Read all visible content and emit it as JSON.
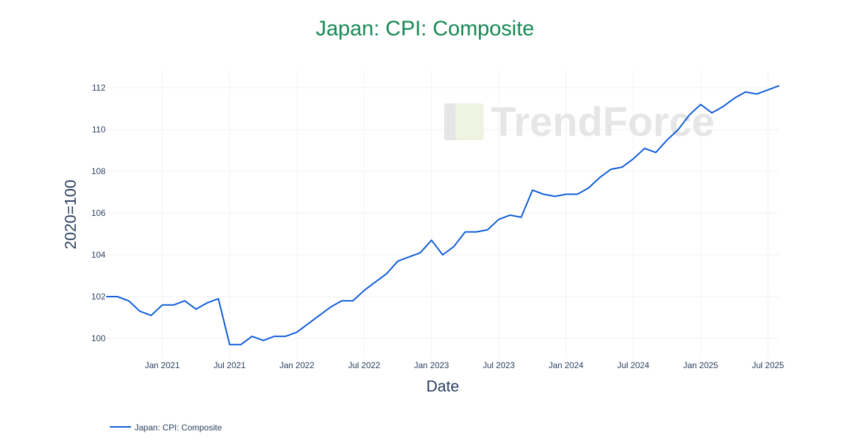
{
  "chart_data": {
    "type": "line",
    "title": "Japan: CPI: Composite",
    "xlabel": "Date",
    "ylabel": "2020=100",
    "watermark": "TrendForce",
    "grid": true,
    "legend_position": "bottom-left",
    "ylim": [
      99.2,
      112.8
    ],
    "yticks": [
      100,
      102,
      104,
      106,
      108,
      110,
      112
    ],
    "xticks": [
      {
        "date": "2021-01",
        "label": "Jan 2021"
      },
      {
        "date": "2021-07",
        "label": "Jul 2021"
      },
      {
        "date": "2022-01",
        "label": "Jan 2022"
      },
      {
        "date": "2022-07",
        "label": "Jul 2022"
      },
      {
        "date": "2023-01",
        "label": "Jan 2023"
      },
      {
        "date": "2023-07",
        "label": "Jul 2023"
      },
      {
        "date": "2024-01",
        "label": "Jan 2024"
      },
      {
        "date": "2024-07",
        "label": "Jul 2024"
      },
      {
        "date": "2025-01",
        "label": "Jan 2025"
      },
      {
        "date": "2025-07",
        "label": "Jul 2025"
      }
    ],
    "series": [
      {
        "name": "Japan: CPI: Composite",
        "color": "#0b5ad9",
        "start": "2020-08",
        "frequency": "monthly",
        "values": [
          102.0,
          102.0,
          101.8,
          101.3,
          101.1,
          101.6,
          101.6,
          101.8,
          101.4,
          101.7,
          101.9,
          99.7,
          99.7,
          100.1,
          99.9,
          100.1,
          100.1,
          100.3,
          100.7,
          101.1,
          101.5,
          101.8,
          101.8,
          102.3,
          102.7,
          103.1,
          103.7,
          103.9,
          104.1,
          104.7,
          104.0,
          104.4,
          105.1,
          105.1,
          105.2,
          105.7,
          105.9,
          105.8,
          107.1,
          106.9,
          106.8,
          106.9,
          106.9,
          107.2,
          107.7,
          108.1,
          108.2,
          108.6,
          109.1,
          108.9,
          109.5,
          110.0,
          110.7,
          111.2,
          110.8,
          111.1,
          111.5,
          111.8,
          111.7,
          111.9,
          112.1
        ]
      }
    ]
  }
}
